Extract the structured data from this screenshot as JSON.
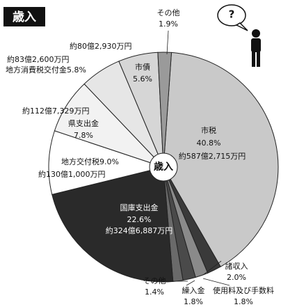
{
  "chart_data": {
    "type": "pie",
    "title": "歳入",
    "center_label": "歳入",
    "icon_text": "?",
    "categories": [
      "市税",
      "諸収入",
      "使用料及び手数料",
      "繰入金",
      "その他",
      "国庫支出金",
      "地方交付税",
      "県支出金",
      "地方消費税交付金",
      "市債",
      "その他"
    ],
    "values": [
      40.8,
      2.0,
      1.8,
      1.8,
      1.4,
      22.6,
      9.0,
      7.8,
      5.8,
      5.6,
      1.9
    ],
    "value_labels": [
      "40.8%",
      "2.0%",
      "1.8%",
      "1.8%",
      "1.4%",
      "22.6%",
      "9.0%",
      "7.8%",
      "5.8%",
      "5.6%",
      "1.9%"
    ],
    "amounts": [
      "約587億2,715万円",
      null,
      null,
      null,
      null,
      "約324億6,887万円",
      "約130億1,000万円",
      "約112億7,329万円",
      "約83億2,600万円",
      "約80億2,930万円",
      null
    ],
    "colors": [
      "#c9c9c9",
      "#3a3a3a",
      "#8a8a8a",
      "#4a4a4a",
      "#6a6a6a",
      "#2a2a2a",
      "#ffffff",
      "#f2f2f2",
      "#e6e6e6",
      "#d6d6d6",
      "#9a9a9a"
    ]
  }
}
